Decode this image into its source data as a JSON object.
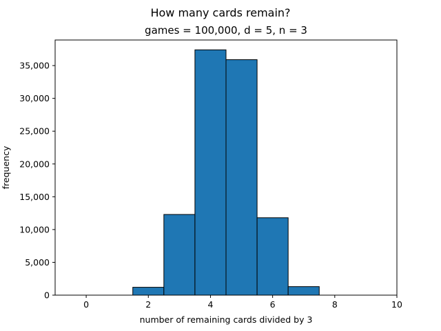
{
  "chart_data": {
    "type": "bar",
    "title": "How many cards remain?",
    "subtitle": "games = 100,000, d = 5, n = 3",
    "xlabel": "number of remaining cards divided by 3",
    "ylabel": "frequency",
    "xlim": [
      -1,
      10
    ],
    "ylim": [
      0,
      38900
    ],
    "x_ticks": [
      0,
      2,
      4,
      6,
      8,
      10
    ],
    "x_tick_labels": [
      "0",
      "2",
      "4",
      "6",
      "8",
      "10"
    ],
    "y_ticks": [
      0,
      5000,
      10000,
      15000,
      20000,
      25000,
      30000,
      35000
    ],
    "y_tick_labels": [
      "0",
      "5,000",
      "10,000",
      "15,000",
      "20,000",
      "25,000",
      "30,000",
      "35,000"
    ],
    "bar_width": 1,
    "categories": [
      0,
      1,
      2,
      3,
      4,
      5,
      6,
      7,
      8,
      9
    ],
    "values": [
      0,
      0,
      1200,
      12300,
      37400,
      35900,
      11800,
      1300,
      0,
      0
    ],
    "grid": false,
    "colors": {
      "bar_fill": "#1f77b4",
      "bar_edge": "#000000"
    }
  }
}
